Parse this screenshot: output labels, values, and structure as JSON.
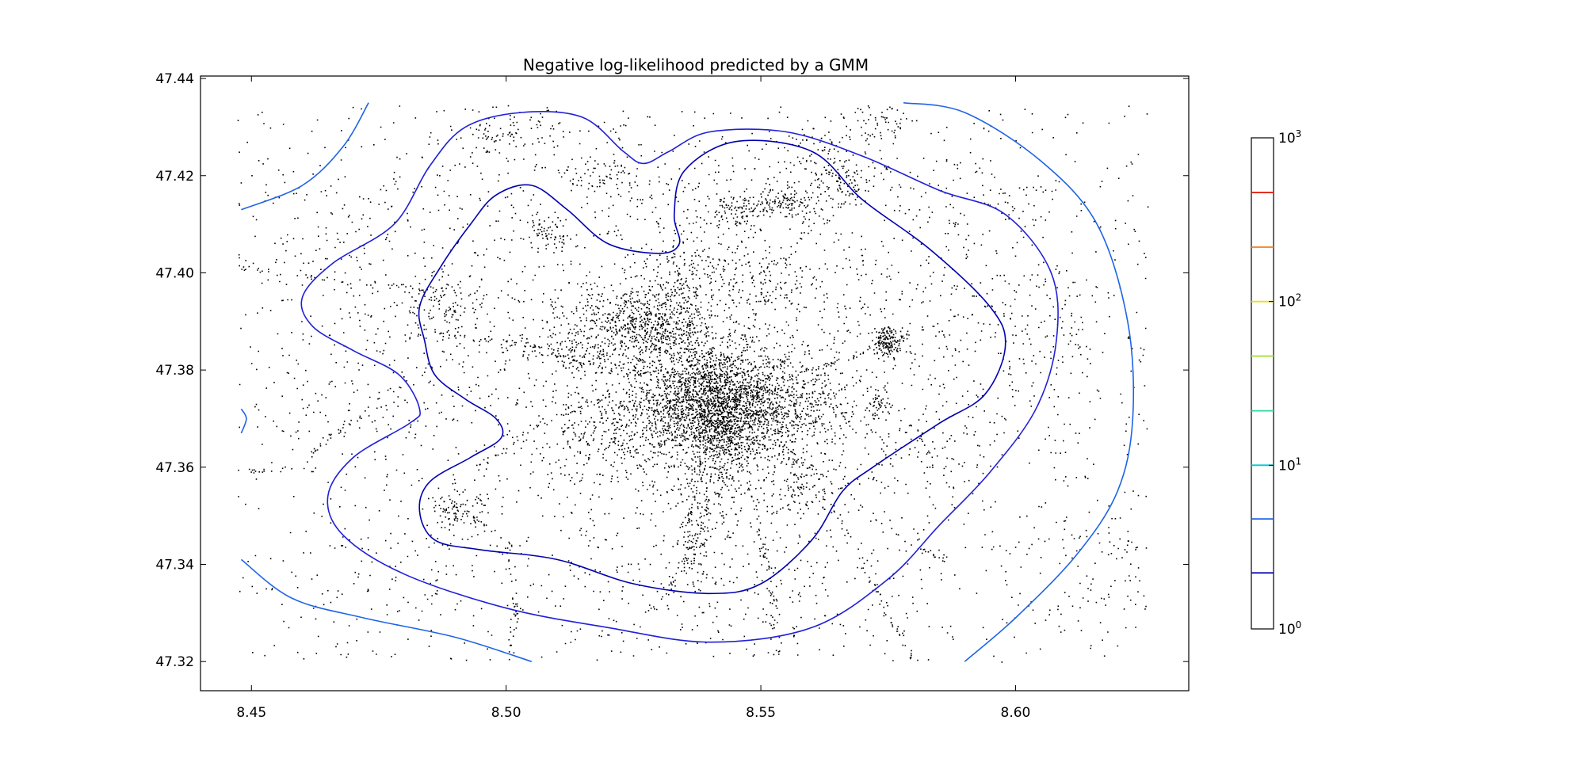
{
  "chart_data": {
    "type": "scatter",
    "title": "Negative log-likelihood predicted by a GMM",
    "xlabel": "",
    "ylabel": "",
    "xlim": [
      8.44,
      8.634
    ],
    "ylim": [
      47.314,
      47.4405
    ],
    "x_ticks": [
      {
        "value": 8.45,
        "label": "8.45"
      },
      {
        "value": 8.5,
        "label": "8.50"
      },
      {
        "value": 8.55,
        "label": "8.55"
      },
      {
        "value": 8.6,
        "label": "8.60"
      }
    ],
    "y_ticks": [
      {
        "value": 47.32,
        "label": "47.32"
      },
      {
        "value": 47.34,
        "label": "47.34"
      },
      {
        "value": 47.36,
        "label": "47.36"
      },
      {
        "value": 47.38,
        "label": "47.38"
      },
      {
        "value": 47.4,
        "label": "47.40"
      },
      {
        "value": 47.42,
        "label": "47.42"
      },
      {
        "value": 47.44,
        "label": "47.44"
      }
    ],
    "grid": false,
    "scatter_color": "#000000",
    "scatter_clusters": [
      {
        "x": 8.541,
        "y": 47.373,
        "spread_x": 0.009,
        "spread_y": 0.006,
        "count": 2600
      },
      {
        "x": 8.528,
        "y": 47.389,
        "spread_x": 0.007,
        "spread_y": 0.004,
        "count": 700
      },
      {
        "x": 8.542,
        "y": 47.365,
        "spread_x": 0.003,
        "spread_y": 0.008,
        "count": 350
      },
      {
        "x": 8.575,
        "y": 47.386,
        "spread_x": 0.0015,
        "spread_y": 0.0015,
        "count": 160
      },
      {
        "x": 8.555,
        "y": 47.415,
        "spread_x": 0.003,
        "spread_y": 0.002,
        "count": 130
      },
      {
        "x": 8.545,
        "y": 47.413,
        "spread_x": 0.003,
        "spread_y": 0.0018,
        "count": 110
      },
      {
        "x": 8.565,
        "y": 47.419,
        "spread_x": 0.003,
        "spread_y": 0.002,
        "count": 80
      },
      {
        "x": 8.507,
        "y": 47.408,
        "spread_x": 0.002,
        "spread_y": 0.0015,
        "count": 60
      },
      {
        "x": 8.49,
        "y": 47.351,
        "spread_x": 0.003,
        "spread_y": 0.002,
        "count": 80
      },
      {
        "x": 8.537,
        "y": 47.347,
        "spread_x": 0.002,
        "spread_y": 0.006,
        "count": 120
      },
      {
        "x": 8.557,
        "y": 47.358,
        "spread_x": 0.003,
        "spread_y": 0.004,
        "count": 100
      },
      {
        "x": 8.488,
        "y": 47.393,
        "spread_x": 0.004,
        "spread_y": 0.003,
        "count": 90
      },
      {
        "x": 8.519,
        "y": 47.42,
        "spread_x": 0.004,
        "spread_y": 0.002,
        "count": 70
      },
      {
        "x": 8.5,
        "y": 47.428,
        "spread_x": 0.006,
        "spread_y": 0.003,
        "count": 90
      },
      {
        "x": 8.513,
        "y": 47.384,
        "spread_x": 0.003,
        "spread_y": 0.002,
        "count": 60
      },
      {
        "x": 8.518,
        "y": 47.366,
        "spread_x": 0.006,
        "spread_y": 0.004,
        "count": 140
      },
      {
        "x": 8.562,
        "y": 47.374,
        "spread_x": 0.004,
        "spread_y": 0.003,
        "count": 90
      },
      {
        "x": 8.535,
        "y": 47.4,
        "spread_x": 0.004,
        "spread_y": 0.004,
        "count": 120
      },
      {
        "x": 8.548,
        "y": 47.398,
        "spread_x": 0.004,
        "spread_y": 0.003,
        "count": 80
      },
      {
        "x": 8.573,
        "y": 47.373,
        "spread_x": 0.0012,
        "spread_y": 0.0012,
        "count": 40
      },
      {
        "x": 8.56,
        "y": 47.425,
        "spread_x": 0.005,
        "spread_y": 0.003,
        "count": 70
      },
      {
        "x": 8.573,
        "y": 47.431,
        "spread_x": 0.004,
        "spread_y": 0.002,
        "count": 50
      },
      {
        "x": 8.58,
        "y": 47.366,
        "spread_x": 0.006,
        "spread_y": 0.005,
        "count": 60
      },
      {
        "x": 8.603,
        "y": 47.392,
        "spread_x": 0.008,
        "spread_y": 0.006,
        "count": 70
      },
      {
        "x": 8.615,
        "y": 47.34,
        "spread_x": 0.008,
        "spread_y": 0.008,
        "count": 80
      },
      {
        "x": 8.6,
        "y": 47.414,
        "spread_x": 0.012,
        "spread_y": 0.008,
        "count": 80
      },
      {
        "x": 8.47,
        "y": 47.409,
        "spread_x": 0.012,
        "spread_y": 0.009,
        "count": 120
      },
      {
        "x": 8.468,
        "y": 47.375,
        "spread_x": 0.01,
        "spread_y": 0.008,
        "count": 70
      },
      {
        "x": 8.474,
        "y": 47.335,
        "spread_x": 0.01,
        "spread_y": 0.008,
        "count": 50
      },
      {
        "x": 8.54,
        "y": 47.335,
        "spread_x": 0.03,
        "spread_y": 0.008,
        "count": 220
      },
      {
        "x": 8.538,
        "y": 47.385,
        "spread_x": 0.035,
        "spread_y": 0.025,
        "count": 1700
      },
      {
        "x": 8.54,
        "y": 47.378,
        "spread_x": 0.06,
        "spread_y": 0.04,
        "count": 700
      }
    ],
    "scatter_trails": [
      {
        "points": [
          [
            8.448,
            47.359
          ],
          [
            8.458,
            47.36
          ],
          [
            8.465,
            47.366
          ],
          [
            8.47,
            47.37
          ]
        ],
        "count": 40
      },
      {
        "points": [
          [
            8.44,
            47.402
          ],
          [
            8.47,
            47.398
          ],
          [
            8.5,
            47.395
          ],
          [
            8.53,
            47.39
          ]
        ],
        "count": 70
      },
      {
        "points": [
          [
            8.47,
            47.392
          ],
          [
            8.5,
            47.385
          ],
          [
            8.53,
            47.378
          ]
        ],
        "count": 50
      },
      {
        "points": [
          [
            8.5,
            47.32
          ],
          [
            8.502,
            47.33
          ],
          [
            8.5,
            47.345
          ],
          [
            8.49,
            47.352
          ]
        ],
        "count": 60
      },
      {
        "points": [
          [
            8.54,
            47.375
          ],
          [
            8.548,
            47.355
          ],
          [
            8.552,
            47.336
          ],
          [
            8.553,
            47.321
          ]
        ],
        "count": 70
      },
      {
        "points": [
          [
            8.545,
            47.375
          ],
          [
            8.562,
            47.355
          ],
          [
            8.57,
            47.34
          ],
          [
            8.575,
            47.33
          ],
          [
            8.58,
            47.32
          ]
        ],
        "count": 80
      },
      {
        "points": [
          [
            8.54,
            47.37
          ],
          [
            8.56,
            47.36
          ],
          [
            8.578,
            47.345
          ],
          [
            8.588,
            47.34
          ]
        ],
        "count": 50
      },
      {
        "points": [
          [
            8.528,
            47.33
          ],
          [
            8.535,
            47.34
          ],
          [
            8.54,
            47.355
          ]
        ],
        "count": 40
      },
      {
        "points": [
          [
            8.552,
            47.378
          ],
          [
            8.566,
            47.382
          ],
          [
            8.58,
            47.388
          ],
          [
            8.6,
            47.395
          ]
        ],
        "count": 50
      },
      {
        "points": [
          [
            8.545,
            47.38
          ],
          [
            8.556,
            47.405
          ],
          [
            8.566,
            47.415
          ],
          [
            8.575,
            47.422
          ]
        ],
        "count": 50
      },
      {
        "points": [
          [
            8.52,
            47.38
          ],
          [
            8.505,
            47.385
          ],
          [
            8.485,
            47.388
          ]
        ],
        "count": 50
      },
      {
        "points": [
          [
            8.52,
            47.375
          ],
          [
            8.505,
            47.368
          ],
          [
            8.492,
            47.358
          ]
        ],
        "count": 40
      }
    ],
    "scatter_uniform_count": 900,
    "contours": [
      {
        "name": "",
        "color": "#0000b0",
        "closed": true,
        "points": [
          [
            8.505,
            47.418
          ],
          [
            8.512,
            47.413
          ],
          [
            8.52,
            47.406
          ],
          [
            8.53,
            47.404
          ],
          [
            8.534,
            47.406
          ],
          [
            8.533,
            47.412
          ],
          [
            8.535,
            47.421
          ],
          [
            8.545,
            47.427
          ],
          [
            8.56,
            47.425
          ],
          [
            8.57,
            47.415
          ],
          [
            8.583,
            47.405
          ],
          [
            8.595,
            47.393
          ],
          [
            8.598,
            47.385
          ],
          [
            8.594,
            47.375
          ],
          [
            8.585,
            47.369
          ],
          [
            8.572,
            47.36
          ],
          [
            8.566,
            47.355
          ],
          [
            8.56,
            47.345
          ],
          [
            8.55,
            47.336
          ],
          [
            8.54,
            47.334
          ],
          [
            8.525,
            47.336
          ],
          [
            8.51,
            47.341
          ],
          [
            8.495,
            47.343
          ],
          [
            8.486,
            47.345
          ],
          [
            8.483,
            47.351
          ],
          [
            8.485,
            47.357
          ],
          [
            8.493,
            47.362
          ],
          [
            8.499,
            47.366
          ],
          [
            8.498,
            47.37
          ],
          [
            8.492,
            47.374
          ],
          [
            8.486,
            47.379
          ],
          [
            8.484,
            47.386
          ],
          [
            8.483,
            47.393
          ],
          [
            8.487,
            47.401
          ],
          [
            8.493,
            47.41
          ],
          [
            8.498,
            47.416
          ]
        ]
      },
      {
        "name": "",
        "color": "#2020d8",
        "closed": true,
        "points": [
          [
            8.503,
            47.433
          ],
          [
            8.515,
            47.432
          ],
          [
            8.523,
            47.425
          ],
          [
            8.527,
            47.4225
          ],
          [
            8.532,
            47.425
          ],
          [
            8.54,
            47.429
          ],
          [
            8.555,
            47.429
          ],
          [
            8.57,
            47.424
          ],
          [
            8.585,
            47.417
          ],
          [
            8.598,
            47.412
          ],
          [
            8.607,
            47.4
          ],
          [
            8.608,
            47.386
          ],
          [
            8.604,
            47.372
          ],
          [
            8.595,
            47.359
          ],
          [
            8.585,
            47.348
          ],
          [
            8.575,
            47.337
          ],
          [
            8.56,
            47.327
          ],
          [
            8.54,
            47.324
          ],
          [
            8.52,
            47.327
          ],
          [
            8.5,
            47.331
          ],
          [
            8.48,
            47.338
          ],
          [
            8.468,
            47.346
          ],
          [
            8.465,
            47.354
          ],
          [
            8.47,
            47.362
          ],
          [
            8.481,
            47.369
          ],
          [
            8.483,
            47.372
          ],
          [
            8.479,
            47.379
          ],
          [
            8.47,
            47.384
          ],
          [
            8.462,
            47.389
          ],
          [
            8.46,
            47.395
          ],
          [
            8.466,
            47.402
          ],
          [
            8.478,
            47.41
          ],
          [
            8.485,
            47.422
          ],
          [
            8.492,
            47.43
          ]
        ]
      },
      {
        "name": "",
        "color": "#1e64e6",
        "closed": false,
        "points": [
          [
            8.448,
            47.413
          ],
          [
            8.46,
            47.418
          ],
          [
            8.468,
            47.426
          ],
          [
            8.473,
            47.435
          ]
        ]
      },
      {
        "name": "",
        "color": "#1e64e6",
        "closed": false,
        "points": [
          [
            8.578,
            47.435
          ],
          [
            8.59,
            47.433
          ],
          [
            8.605,
            47.423
          ],
          [
            8.616,
            47.41
          ],
          [
            8.622,
            47.39
          ],
          [
            8.623,
            47.37
          ],
          [
            8.62,
            47.355
          ],
          [
            8.612,
            47.342
          ],
          [
            8.6,
            47.329
          ],
          [
            8.59,
            47.32
          ]
        ]
      },
      {
        "name": "",
        "color": "#1e64e6",
        "closed": false,
        "points": [
          [
            8.448,
            47.341
          ],
          [
            8.458,
            47.333
          ],
          [
            8.472,
            47.329
          ],
          [
            8.49,
            47.325
          ],
          [
            8.505,
            47.32
          ]
        ]
      },
      {
        "name": "",
        "color": "#1e64e6",
        "closed": false,
        "points": [
          [
            8.448,
            47.372
          ],
          [
            8.449,
            47.37
          ],
          [
            8.448,
            47.367
          ]
        ]
      }
    ],
    "colorbar": {
      "scale": "log",
      "range": [
        1,
        1000
      ],
      "tick_labels": [
        {
          "base": "10",
          "exp": "0",
          "value": 1
        },
        {
          "base": "10",
          "exp": "1",
          "value": 10
        },
        {
          "base": "10",
          "exp": "2",
          "value": 100
        },
        {
          "base": "10",
          "exp": "3",
          "value": 1000
        }
      ],
      "levels": [
        {
          "value": 2.2,
          "color": "#0000b0"
        },
        {
          "value": 4.7,
          "color": "#1e64e6"
        },
        {
          "value": 10.0,
          "color": "#00c8d8"
        },
        {
          "value": 21.5,
          "color": "#30d8a0"
        },
        {
          "value": 46.4,
          "color": "#a8e040"
        },
        {
          "value": 100,
          "color": "#e8e020"
        },
        {
          "value": 215,
          "color": "#f08020"
        },
        {
          "value": 464,
          "color": "#e02010"
        }
      ]
    }
  }
}
